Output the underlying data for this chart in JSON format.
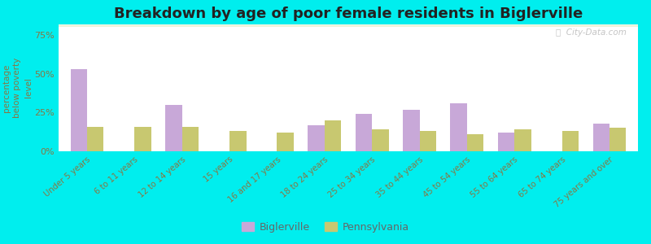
{
  "title": "Breakdown by age of poor female residents in Biglerville",
  "ylabel": "percentage\nbelow poverty\nlevel",
  "categories": [
    "Under 5 years",
    "6 to 11 years",
    "12 to 14 years",
    "15 years",
    "16 and 17 years",
    "18 to 24 years",
    "25 to 34 years",
    "35 to 44 years",
    "45 to 54 years",
    "55 to 64 years",
    "65 to 74 years",
    "75 years and over"
  ],
  "biglerville": [
    53,
    0,
    30,
    0,
    0,
    17,
    24,
    27,
    31,
    12,
    0,
    18
  ],
  "pennsylvania": [
    16,
    16,
    16,
    13,
    12,
    20,
    14,
    13,
    11,
    14,
    13,
    15
  ],
  "biglerville_color": "#c8a8d8",
  "pennsylvania_color": "#c8c870",
  "outer_bg": "#00eeee",
  "ylim": [
    0,
    82
  ],
  "yticks": [
    0,
    25,
    50,
    75
  ],
  "ytick_labels": [
    "0%",
    "25%",
    "50%",
    "75%"
  ],
  "title_fontsize": 13,
  "legend_labels": [
    "Biglerville",
    "Pennsylvania"
  ],
  "bar_width": 0.35,
  "watermark": "ⓘ  City-Data.com"
}
